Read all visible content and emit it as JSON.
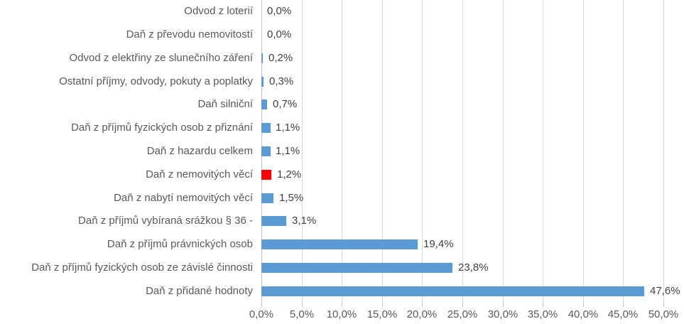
{
  "chart_data": {
    "type": "bar",
    "orientation": "horizontal",
    "title": "",
    "xlabel": "",
    "ylabel": "",
    "xlim": [
      0,
      50
    ],
    "grid": true,
    "legend": "none",
    "categories": [
      "Odvod z loterií",
      "Daň z převodu nemovitostí",
      "Odvod z elektřiny ze slunečního záření",
      "Ostatní příjmy, odvody, pokuty a poplatky",
      "Daň silniční",
      "Daň z příjmů fyzických osob z přiznání",
      "Daň z hazardu celkem",
      "Daň z nemovitých věcí",
      "Daň z nabytí nemovitých věcí",
      "Daň z příjmů vybíraná srážkou § 36 -",
      "Daň z příjmů právnických osob",
      "Daň z příjmů fyzických osob ze závislé činnosti",
      "Daň z přidané hodnoty"
    ],
    "values": [
      0.0,
      0.0,
      0.2,
      0.3,
      0.7,
      1.1,
      1.1,
      1.2,
      1.5,
      3.1,
      19.4,
      23.8,
      47.6
    ],
    "value_labels": [
      "0,0%",
      "0,0%",
      "0,2%",
      "0,3%",
      "0,7%",
      "1,1%",
      "1,1%",
      "1,2%",
      "1,5%",
      "3,1%",
      "19,4%",
      "23,8%",
      "47,6%"
    ],
    "bar_colors": [
      "#5B9BD5",
      "#5B9BD5",
      "#5B9BD5",
      "#5B9BD5",
      "#5B9BD5",
      "#5B9BD5",
      "#5B9BD5",
      "#FF0000",
      "#5B9BD5",
      "#5B9BD5",
      "#5B9BD5",
      "#5B9BD5",
      "#5B9BD5"
    ],
    "highlighted_category": "Daň z nemovitých věcí",
    "x_tick_labels": [
      "0,0%",
      "5,0%",
      "10,0%",
      "15,0%",
      "20,0%",
      "25,0%",
      "30,0%",
      "35,0%",
      "40,0%",
      "45,0%",
      "50,0%"
    ],
    "x_tick_values": [
      0,
      5,
      10,
      15,
      20,
      25,
      30,
      35,
      40,
      45,
      50
    ],
    "colors": {
      "bar_default": "#5B9BD5",
      "bar_highlight": "#FF0000",
      "gridline": "#D9D9D9",
      "axis_line": "#BFBFBF",
      "category_label_text": "#595959",
      "value_label_text": "#404040",
      "axis_tick_text": "#595959",
      "background": "#FFFFFF"
    }
  }
}
